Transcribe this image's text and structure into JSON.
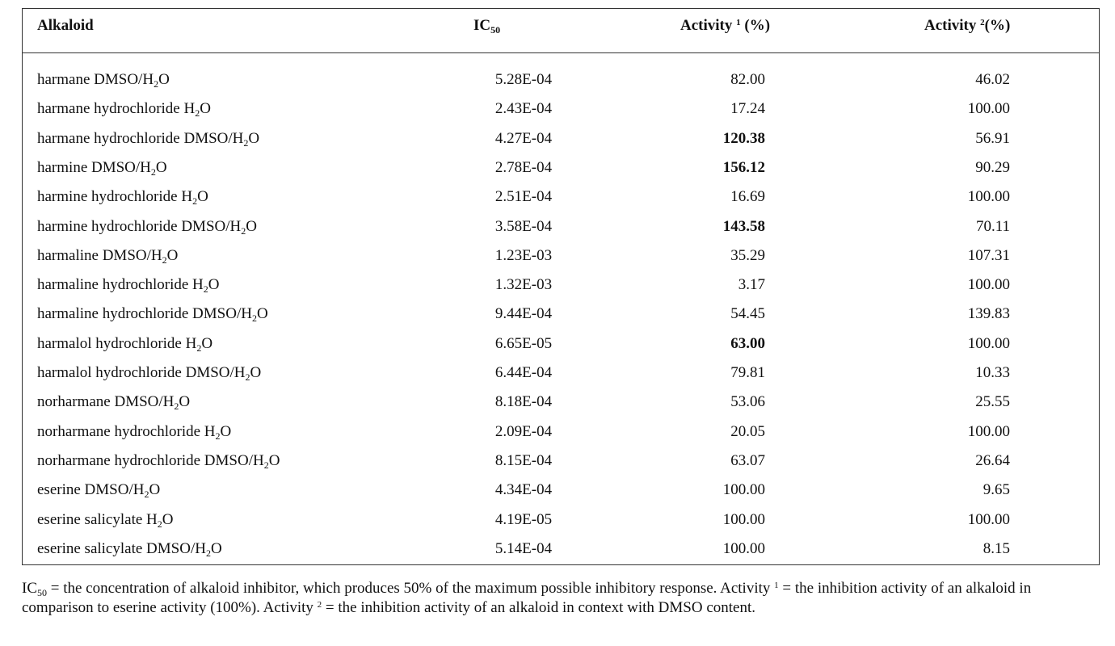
{
  "table": {
    "headers": [
      "Alkaloid",
      "IC",
      "50",
      "Activity",
      "1",
      "(%)",
      "Activity",
      "2",
      "(%)"
    ],
    "rows": [
      {
        "alkaloid": "harmane DMSO/H",
        "sub": "2",
        "after": "O",
        "ic50": "5.28E-04",
        "act1": "82.00",
        "act1_bold": false,
        "act2": "46.02"
      },
      {
        "alkaloid": "harmane hydrochloride H",
        "sub": "2",
        "after": "O",
        "ic50": "2.43E-04",
        "act1": "17.24",
        "act1_bold": false,
        "act2": "100.00"
      },
      {
        "alkaloid": "harmane hydrochloride DMSO/H",
        "sub": "2",
        "after": "O",
        "ic50": "4.27E-04",
        "act1": "120.38",
        "act1_bold": true,
        "act2": "56.91"
      },
      {
        "alkaloid": "harmine DMSO/H",
        "sub": "2",
        "after": "O",
        "ic50": "2.78E-04",
        "act1": "156.12",
        "act1_bold": true,
        "act2": "90.29"
      },
      {
        "alkaloid": "harmine hydrochloride H",
        "sub": "2",
        "after": "O",
        "ic50": "2.51E-04",
        "act1": "16.69",
        "act1_bold": false,
        "act2": "100.00"
      },
      {
        "alkaloid": "harmine hydrochloride DMSO/H",
        "sub": "2",
        "after": "O",
        "ic50": "3.58E-04",
        "act1": "143.58",
        "act1_bold": true,
        "act2": "70.11"
      },
      {
        "alkaloid": "harmaline DMSO/H",
        "sub": "2",
        "after": "O",
        "ic50": "1.23E-03",
        "act1": "35.29",
        "act1_bold": false,
        "act2": "107.31"
      },
      {
        "alkaloid": "harmaline hydrochloride H",
        "sub": "2",
        "after": "O",
        "ic50": "1.32E-03",
        "act1": "3.17",
        "act1_bold": false,
        "act2": "100.00"
      },
      {
        "alkaloid": "harmaline hydrochloride DMSO/H",
        "sub": "2",
        "after": "O",
        "ic50": "9.44E-04",
        "act1": "54.45",
        "act1_bold": false,
        "act2": "139.83"
      },
      {
        "alkaloid": "harmalol hydrochloride H",
        "sub": "2",
        "after": "O",
        "ic50": "6.65E-05",
        "act1": "63.00",
        "act1_bold": true,
        "act2": "100.00"
      },
      {
        "alkaloid": "harmalol hydrochloride DMSO/H",
        "sub": "2",
        "after": "O",
        "ic50": "6.44E-04",
        "act1": "79.81",
        "act1_bold": false,
        "act2": "10.33"
      },
      {
        "alkaloid": "norharmane DMSO/H",
        "sub": "2",
        "after": "O",
        "ic50": "8.18E-04",
        "act1": "53.06",
        "act1_bold": false,
        "act2": "25.55"
      },
      {
        "alkaloid": "norharmane hydrochloride H",
        "sub": "2",
        "after": "O",
        "ic50": "2.09E-04",
        "act1": "20.05",
        "act1_bold": false,
        "act2": "100.00"
      },
      {
        "alkaloid": "norharmane hydrochloride DMSO/H",
        "sub": "2",
        "after": "O",
        "ic50": "8.15E-04",
        "act1": "63.07",
        "act1_bold": false,
        "act2": "26.64"
      },
      {
        "alkaloid": "eserine DMSO/H",
        "sub": "2",
        "after": "O",
        "ic50": "4.34E-04",
        "act1": "100.00",
        "act1_bold": false,
        "act2": "9.65"
      },
      {
        "alkaloid": "eserine salicylate H",
        "sub": "2",
        "after": "O",
        "ic50": "4.19E-05",
        "act1": "100.00",
        "act1_bold": false,
        "act2": "100.00"
      },
      {
        "alkaloid": "eserine salicylate DMSO/H",
        "sub": "2",
        "after": "O",
        "ic50": "5.14E-04",
        "act1": "100.00",
        "act1_bold": false,
        "act2": "8.15"
      }
    ]
  },
  "footnote": {
    "p1": "IC",
    "p1_sub": "50",
    "p2": " = the concentration of alkaloid inhibitor, which produces 50% of the maximum possible inhibitory response. Activity ",
    "p2_sup": "1",
    "p3": " = the inhibition activity of an alkaloid in comparison to eserine activity (100%). Activity ",
    "p3_sup": "2",
    "p4": " = the inhibition activity of an alkaloid in context with DMSO content."
  }
}
